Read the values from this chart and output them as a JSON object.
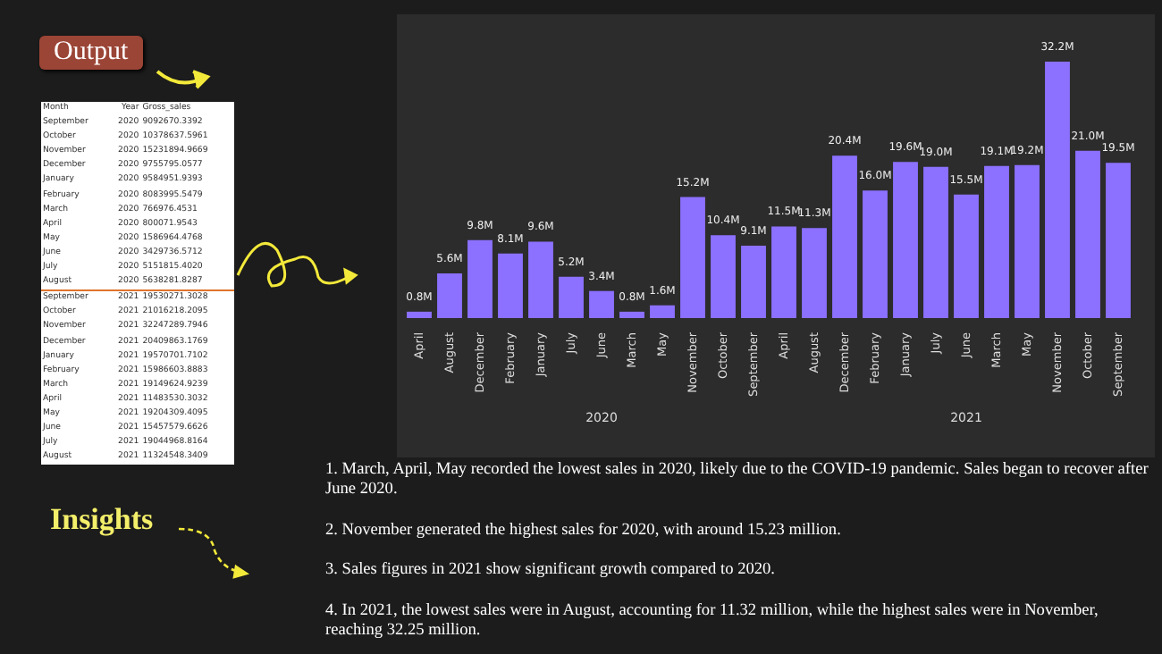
{
  "chart_data": {
    "type": "bar",
    "categories": [
      "April",
      "August",
      "December",
      "February",
      "January",
      "July",
      "June",
      "March",
      "May",
      "November",
      "October",
      "September",
      "April",
      "August",
      "December",
      "February",
      "January",
      "July",
      "June",
      "March",
      "May",
      "November",
      "October",
      "September"
    ],
    "values": [
      0.8,
      5.6,
      9.8,
      8.1,
      9.6,
      5.2,
      3.4,
      0.8,
      1.6,
      15.2,
      10.4,
      9.1,
      11.5,
      11.3,
      20.4,
      16.0,
      19.6,
      19.0,
      15.5,
      19.1,
      19.2,
      32.2,
      21.0,
      19.5
    ],
    "value_labels": [
      "0.8M",
      "5.6M",
      "9.8M",
      "8.1M",
      "9.6M",
      "5.2M",
      "3.4M",
      "0.8M",
      "1.6M",
      "15.2M",
      "10.4M",
      "9.1M",
      "11.5M",
      "11.3M",
      "20.4M",
      "16.0M",
      "19.6M",
      "19.0M",
      "15.5M",
      "19.1M",
      "19.2M",
      "32.2M",
      "21.0M",
      "19.5M"
    ],
    "color": "#8c70ff",
    "annotations": [
      "Output",
      "Insights",
      "1. March, April, May recorded the lowest sales in 2020, likely due to the COVID-19 pandemic. Sales began to recover after June 2020.",
      "2. November generated the highest sales for 2020, with around 15.23 million.",
      "3. Sales figures in 2021 show significant growth compared to 2020.",
      "4. In 2021, the lowest sales were in August, accounting for 11.32 million, while the highest sales were in November, reaching 32.25 million.",
      "2020",
      "2021",
      "Month",
      "Year",
      "Gross_sales",
      "September",
      "2020",
      "9092670.3392",
      "October",
      "2020",
      "10378637.5961",
      "November",
      "2020",
      "15231894.9669",
      "December",
      "2020",
      "9755795.0577",
      "January",
      "2020",
      "9584951.9393",
      "February",
      "2020",
      "8083995.5479",
      "March",
      "2020",
      "766976.4531",
      "April",
      "2020",
      "800071.9543",
      "May",
      "2020",
      "1586964.4768",
      "June",
      "2020",
      "3429736.5712",
      "July",
      "2020",
      "5151815.4020",
      "August",
      "2020",
      "5638281.8287",
      "September",
      "2021",
      "19530271.3028",
      "October",
      "2021",
      "21016218.2095",
      "November",
      "2021",
      "32247289.7946",
      "December",
      "2021",
      "20409863.1769",
      "January",
      "2021",
      "19570701.7102",
      "February",
      "2021",
      "15986603.8883",
      "March",
      "2021",
      "19149624.9239",
      "April",
      "2021",
      "11483530.3032",
      "May",
      "2021",
      "19204309.4095",
      "June",
      "2021",
      "15457579.6626",
      "July",
      "2021",
      "19044968.8164",
      "August",
      "2021",
      "11324548.3409"
    ]
  }
}
